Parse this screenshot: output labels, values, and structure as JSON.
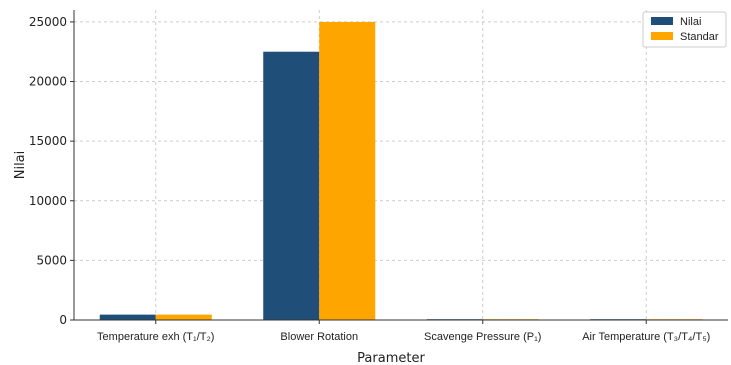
{
  "chart_data": {
    "type": "bar",
    "xlabel": "Parameter",
    "ylabel": "Nilai",
    "ylim": [
      0,
      26000
    ],
    "yticks": [
      0,
      5000,
      10000,
      15000,
      20000,
      25000
    ],
    "categories": [
      "Temperature exh (T₁/T₂)",
      "Blower Rotation",
      "Scavenge Pressure (P₁)",
      "Air Temperature (T₃/T₄/T₅)"
    ],
    "series": [
      {
        "name": "Nilai",
        "values": [
          450,
          22500,
          1,
          60
        ]
      },
      {
        "name": "Standar",
        "values": [
          450,
          25000,
          1,
          60
        ]
      }
    ],
    "grid": true,
    "legend_position": "top-right",
    "colors": {
      "Nilai": "#1f4e79",
      "Standar": "#ffa500",
      "grid": "#cccccc",
      "axis": "#333333"
    }
  }
}
